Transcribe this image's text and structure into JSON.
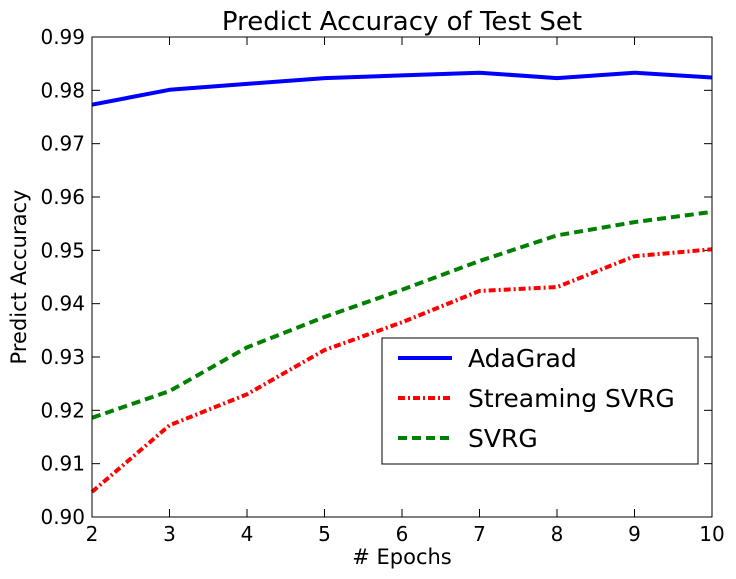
{
  "chart_data": {
    "type": "line",
    "title": "Predict Accuracy of Test Set",
    "xlabel": "# Epochs",
    "ylabel": "Predict Accuracy",
    "xlim": [
      2,
      10
    ],
    "ylim": [
      0.9,
      0.99
    ],
    "x_ticks": [
      "2",
      "3",
      "4",
      "5",
      "6",
      "7",
      "8",
      "9",
      "10"
    ],
    "y_ticks": [
      "0.90",
      "0.91",
      "0.92",
      "0.93",
      "0.94",
      "0.95",
      "0.96",
      "0.97",
      "0.98",
      "0.99"
    ],
    "x": [
      2,
      3,
      4,
      5,
      6,
      7,
      8,
      9,
      10
    ],
    "grid": false,
    "legend_position": "lower-right",
    "series": [
      {
        "name": "AdaGrad",
        "color": "#0000ff",
        "style": "solid",
        "values": [
          0.9773,
          0.9801,
          0.9812,
          0.9823,
          0.9828,
          0.9833,
          0.9823,
          0.9833,
          0.9824
        ]
      },
      {
        "name": "Streaming SVRG",
        "color": "#ff0000",
        "style": "dashdot",
        "values": [
          0.9047,
          0.9172,
          0.923,
          0.9313,
          0.9365,
          0.9424,
          0.9431,
          0.9489,
          0.9502
        ]
      },
      {
        "name": "SVRG",
        "color": "#008000",
        "style": "dashed",
        "values": [
          0.9186,
          0.9236,
          0.9318,
          0.9375,
          0.9426,
          0.948,
          0.9528,
          0.9553,
          0.9572
        ]
      }
    ]
  }
}
